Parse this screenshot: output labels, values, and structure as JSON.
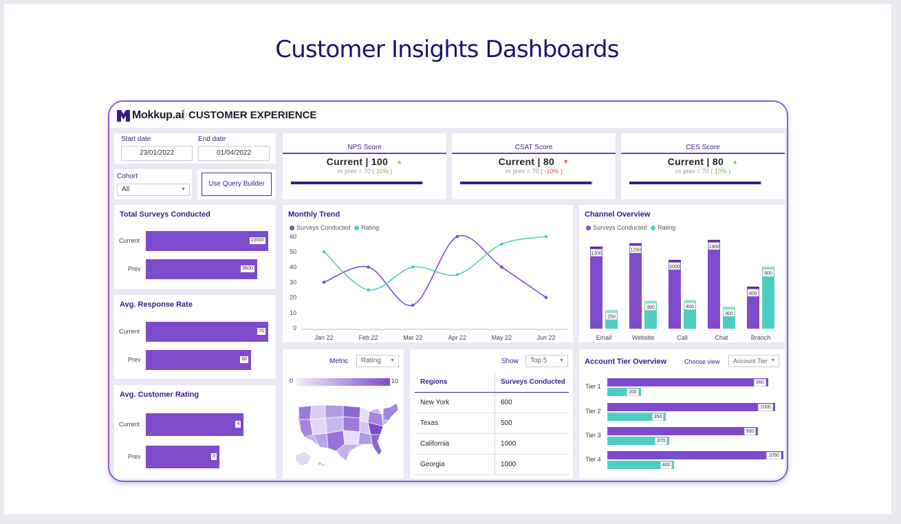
{
  "page": {
    "title": "Customer Insights Dashboards"
  },
  "header": {
    "brand": "Mokkup.ai",
    "section": "CUSTOMER EXPERIENCE"
  },
  "filters": {
    "start_label": "Start date",
    "start_value": "23/01/2022",
    "end_label": "End date",
    "end_value": "01/04/2022",
    "cohort_label": "Cohort",
    "cohort_value": "All",
    "query_button": "Use Query Builder"
  },
  "kpis": [
    {
      "title": "NPS Score",
      "current": "Current | 100",
      "trend": "up",
      "prev": "vs prev =  70",
      "delta": "( 10% )",
      "progress": 0.99
    },
    {
      "title": "CSAT Score",
      "current": "Current | 80",
      "trend": "down",
      "prev": "vs prev =  70",
      "delta": "( -10% )",
      "progress": 0.99
    },
    {
      "title": "CES Score",
      "current": "Current | 80",
      "trend": "up",
      "prev": "vs prev =  70",
      "delta": "( 10% )",
      "progress": 0.99
    }
  ],
  "colors": {
    "purple": "#7e4bcd",
    "teal": "#4ecdc4",
    "dark": "#3a1a8a",
    "up": "#8bc34a",
    "down": "#e0533d"
  },
  "icons": {
    "brand": "mokkup-logo-icon",
    "up": "triangle-up-icon",
    "down": "triangle-down-icon",
    "caret": "chevron-down-icon"
  },
  "surveys": {
    "title": "Total Surveys Conducted",
    "rows": [
      {
        "label": "Current",
        "value": "10500",
        "ratio": 1.0
      },
      {
        "label": "Prev",
        "value": "9600",
        "ratio": 0.91
      }
    ]
  },
  "response": {
    "title": "Avg. Response Rate",
    "rows": [
      {
        "label": "Current",
        "value": "70",
        "ratio": 1.0
      },
      {
        "label": "Prev",
        "value": "60",
        "ratio": 0.86
      }
    ]
  },
  "rating": {
    "title": "Avg. Customer Rating",
    "rows": [
      {
        "label": "Current",
        "value": "4",
        "ratio": 0.8
      },
      {
        "label": "Prev",
        "value": "3",
        "ratio": 0.6
      }
    ]
  },
  "monthly_trend": {
    "title": "Monthly Trend",
    "legend": [
      "Surveys Conducted",
      "Rating"
    ],
    "y_ticks": [
      "0",
      "10",
      "20",
      "30",
      "40",
      "50",
      "60"
    ]
  },
  "channel": {
    "title": "Channel Overview",
    "legend": [
      "Surveys Conducted",
      "Rating"
    ]
  },
  "map": {
    "metric_label": "Metric",
    "metric_value": "Rating",
    "scale_min": "0",
    "scale_max": "10"
  },
  "regions": {
    "show_label": "Show",
    "show_value": "Top 5",
    "headers": [
      "Regions",
      "Surveys Conducted"
    ],
    "rows": [
      {
        "region": "New York",
        "value": "600"
      },
      {
        "region": "Texas",
        "value": "500"
      },
      {
        "region": "California",
        "value": "1000"
      },
      {
        "region": "Georgia",
        "value": "1000"
      }
    ]
  },
  "account_tier": {
    "title": "Account Tier Overview",
    "view_label": "Choose view",
    "view_value": "Account Tier"
  },
  "chart_data": [
    {
      "type": "line",
      "title": "Monthly Trend",
      "categories": [
        "Jan 22",
        "Feb 22",
        "Mar 22",
        "Apr 22",
        "May 22",
        "Jun 22"
      ],
      "series": [
        {
          "name": "Surveys Conducted",
          "values": [
            30,
            40,
            15,
            60,
            40,
            20
          ]
        },
        {
          "name": "Rating",
          "values": [
            50,
            25,
            40,
            35,
            55,
            60
          ]
        }
      ],
      "ylim": [
        0,
        60
      ]
    },
    {
      "type": "bar",
      "title": "Channel Overview",
      "categories": [
        "Email",
        "Website",
        "Call",
        "Chat",
        "Branch"
      ],
      "series": [
        {
          "name": "Surveys Conducted",
          "values": [
            1200,
            1250,
            1000,
            1300,
            600
          ]
        },
        {
          "name": "Rating",
          "values": [
            250,
            390,
            400,
            300,
            900
          ]
        }
      ],
      "ylim": [
        0,
        1350
      ]
    },
    {
      "type": "bar",
      "title": "Account Tier Overview",
      "categories": [
        "Tier 1",
        "Tier 2",
        "Tier 3",
        "Tier 4"
      ],
      "series": [
        {
          "values": [
            960,
            1000,
            900,
            1050
          ]
        },
        {
          "values": [
            200,
            350,
            370,
            400
          ]
        }
      ],
      "xlim": [
        0,
        1100
      ]
    }
  ]
}
